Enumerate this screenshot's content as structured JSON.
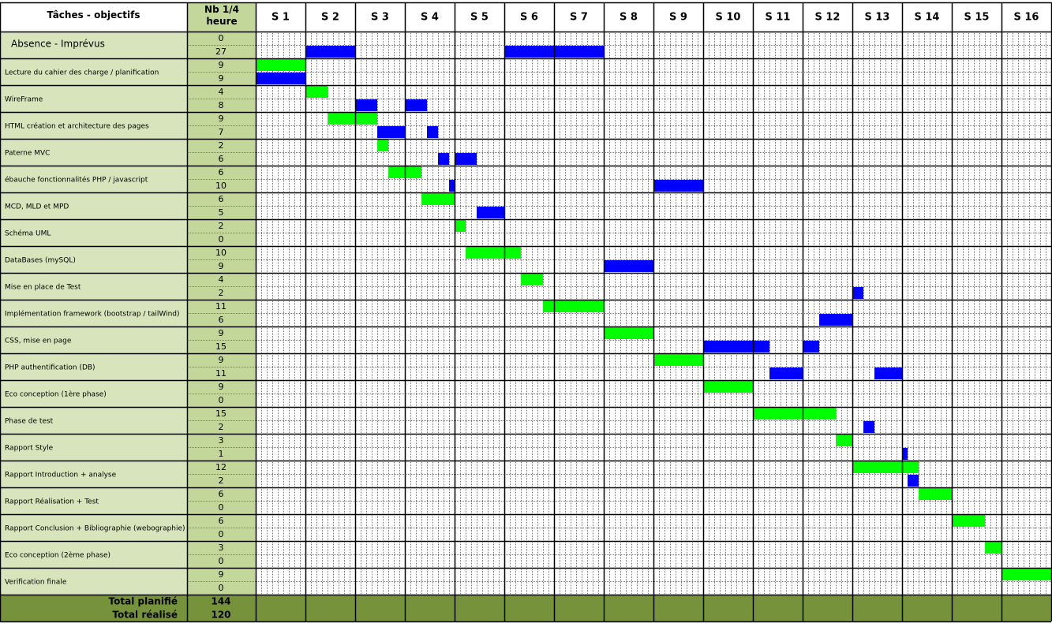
{
  "header": {
    "task": "Tâches - objectifs",
    "quarter_hours": "Nb 1/4 heure",
    "weeks": [
      "S 1",
      "S 2",
      "S 3",
      "S 4",
      "S 5",
      "S 6",
      "S 7",
      "S 8",
      "S 9",
      "S 10",
      "S 11",
      "S 12",
      "S 13",
      "S 14",
      "S 15",
      "S 16"
    ]
  },
  "tasks": [
    {
      "label": "Absence - Imprévus",
      "planned": 0,
      "realized": 27,
      "planned_bars": [],
      "realized_bars": [
        {
          "start": 9,
          "length": 9
        },
        {
          "start": 45,
          "length": 18
        }
      ]
    },
    {
      "label": "Lecture du cahier des charge / planification",
      "planned": 9,
      "realized": 9,
      "planned_bars": [
        {
          "start": 0,
          "length": 9
        }
      ],
      "realized_bars": [
        {
          "start": 0,
          "length": 9
        }
      ]
    },
    {
      "label": "WireFrame",
      "planned": 4,
      "realized": 8,
      "planned_bars": [
        {
          "start": 9,
          "length": 4
        }
      ],
      "realized_bars": [
        {
          "start": 18,
          "length": 4
        },
        {
          "start": 27,
          "length": 4
        }
      ]
    },
    {
      "label": "HTML création et architecture des pages",
      "planned": 9,
      "realized": 7,
      "planned_bars": [
        {
          "start": 13,
          "length": 9
        }
      ],
      "realized_bars": [
        {
          "start": 22,
          "length": 5
        },
        {
          "start": 31,
          "length": 2
        }
      ]
    },
    {
      "label": "Paterne MVC",
      "planned": 2,
      "realized": 6,
      "planned_bars": [
        {
          "start": 22,
          "length": 2
        }
      ],
      "realized_bars": [
        {
          "start": 33,
          "length": 2
        },
        {
          "start": 36,
          "length": 4
        }
      ]
    },
    {
      "label": "ébauche fonctionnalités PHP / javascript",
      "planned": 6,
      "realized": 10,
      "planned_bars": [
        {
          "start": 24,
          "length": 6
        }
      ],
      "realized_bars": [
        {
          "start": 35,
          "length": 1
        },
        {
          "start": 72,
          "length": 9
        }
      ]
    },
    {
      "label": "MCD, MLD et MPD",
      "planned": 6,
      "realized": 5,
      "planned_bars": [
        {
          "start": 30,
          "length": 6
        }
      ],
      "realized_bars": [
        {
          "start": 40,
          "length": 5
        }
      ]
    },
    {
      "label": "Schéma UML",
      "planned": 2,
      "realized": 0,
      "planned_bars": [
        {
          "start": 36,
          "length": 2
        }
      ],
      "realized_bars": []
    },
    {
      "label": "DataBases (mySQL)",
      "planned": 10,
      "realized": 9,
      "planned_bars": [
        {
          "start": 38,
          "length": 10
        }
      ],
      "realized_bars": [
        {
          "start": 63,
          "length": 9
        }
      ]
    },
    {
      "label": "Mise en place de Test",
      "planned": 4,
      "realized": 2,
      "planned_bars": [
        {
          "start": 48,
          "length": 4
        }
      ],
      "realized_bars": [
        {
          "start": 108,
          "length": 2
        }
      ]
    },
    {
      "label": "Implémentation framework (bootstrap / tailWind)",
      "planned": 11,
      "realized": 6,
      "planned_bars": [
        {
          "start": 52,
          "length": 11
        }
      ],
      "realized_bars": [
        {
          "start": 102,
          "length": 6
        }
      ]
    },
    {
      "label": "CSS, mise en page",
      "planned": 9,
      "realized": 15,
      "planned_bars": [
        {
          "start": 63,
          "length": 9
        }
      ],
      "realized_bars": [
        {
          "start": 81,
          "length": 12
        },
        {
          "start": 99,
          "length": 3
        }
      ]
    },
    {
      "label": "PHP authentification (DB)",
      "planned": 9,
      "realized": 11,
      "planned_bars": [
        {
          "start": 72,
          "length": 9
        }
      ],
      "realized_bars": [
        {
          "start": 93,
          "length": 6
        },
        {
          "start": 112,
          "length": 5
        }
      ]
    },
    {
      "label": "Eco conception (1ère phase)",
      "planned": 9,
      "realized": 0,
      "planned_bars": [
        {
          "start": 81,
          "length": 9
        }
      ],
      "realized_bars": []
    },
    {
      "label": "Phase de test",
      "planned": 15,
      "realized": 2,
      "planned_bars": [
        {
          "start": 90,
          "length": 15
        }
      ],
      "realized_bars": [
        {
          "start": 110,
          "length": 2
        }
      ]
    },
    {
      "label": "Rapport Style",
      "planned": 3,
      "realized": 1,
      "planned_bars": [
        {
          "start": 105,
          "length": 3
        }
      ],
      "realized_bars": [
        {
          "start": 117,
          "length": 1
        }
      ]
    },
    {
      "label": "Rapport Introduction + analyse",
      "planned": 12,
      "realized": 2,
      "planned_bars": [
        {
          "start": 108,
          "length": 12
        }
      ],
      "realized_bars": [
        {
          "start": 118,
          "length": 2
        }
      ]
    },
    {
      "label": "Rapport Réalisation + Test",
      "planned": 6,
      "realized": 0,
      "planned_bars": [
        {
          "start": 120,
          "length": 6
        }
      ],
      "realized_bars": []
    },
    {
      "label": "Rapport Conclusion + Bibliographie (webographie)",
      "planned": 6,
      "realized": 0,
      "planned_bars": [
        {
          "start": 126,
          "length": 6
        }
      ],
      "realized_bars": []
    },
    {
      "label": "Eco conception (2ème phase)",
      "planned": 3,
      "realized": 0,
      "planned_bars": [
        {
          "start": 132,
          "length": 3
        }
      ],
      "realized_bars": []
    },
    {
      "label": "Verification finale",
      "planned": 9,
      "realized": 0,
      "planned_bars": [
        {
          "start": 135,
          "length": 9
        }
      ],
      "realized_bars": []
    }
  ],
  "totals": {
    "planned_label": "Total planifié",
    "planned": 144,
    "realized_label": "Total réalisé",
    "realized": 120
  }
}
